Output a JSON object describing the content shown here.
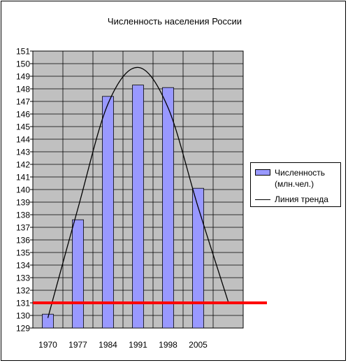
{
  "chart_data": {
    "type": "bar",
    "title": "Численность населения России",
    "categories": [
      "1970",
      "1977",
      "1984",
      "1991",
      "1998",
      "2005",
      ""
    ],
    "tick_labels_x": [
      "1970",
      "1977",
      "1984",
      "1991",
      "1998",
      "2005"
    ],
    "series": [
      {
        "name": "Численность (млн.чел.)",
        "type": "bar",
        "values": [
          130.1,
          137.6,
          147.4,
          148.3,
          148.1,
          140.1,
          null
        ],
        "color": "#9999ff"
      },
      {
        "name": "Линия тренда",
        "type": "line",
        "trend": "polynomial",
        "values": [
          129.8,
          138.5,
          146.8,
          149.7,
          146.5,
          138.6,
          131.1
        ],
        "color": "#000000"
      }
    ],
    "reference_line": {
      "y": 131,
      "color": "#ff0000"
    },
    "ylim": [
      129,
      151
    ],
    "yticks": [
      129,
      130,
      131,
      132,
      133,
      134,
      135,
      136,
      137,
      138,
      139,
      140,
      141,
      142,
      143,
      144,
      145,
      146,
      147,
      148,
      149,
      150,
      151
    ],
    "grid": true,
    "plot_background": "#c0c0c0",
    "legend_position": "right",
    "xlabel": "",
    "ylabel": ""
  },
  "legend": {
    "bar_label": "Численность (млн.чел.)",
    "line_label": "Линия тренда"
  }
}
